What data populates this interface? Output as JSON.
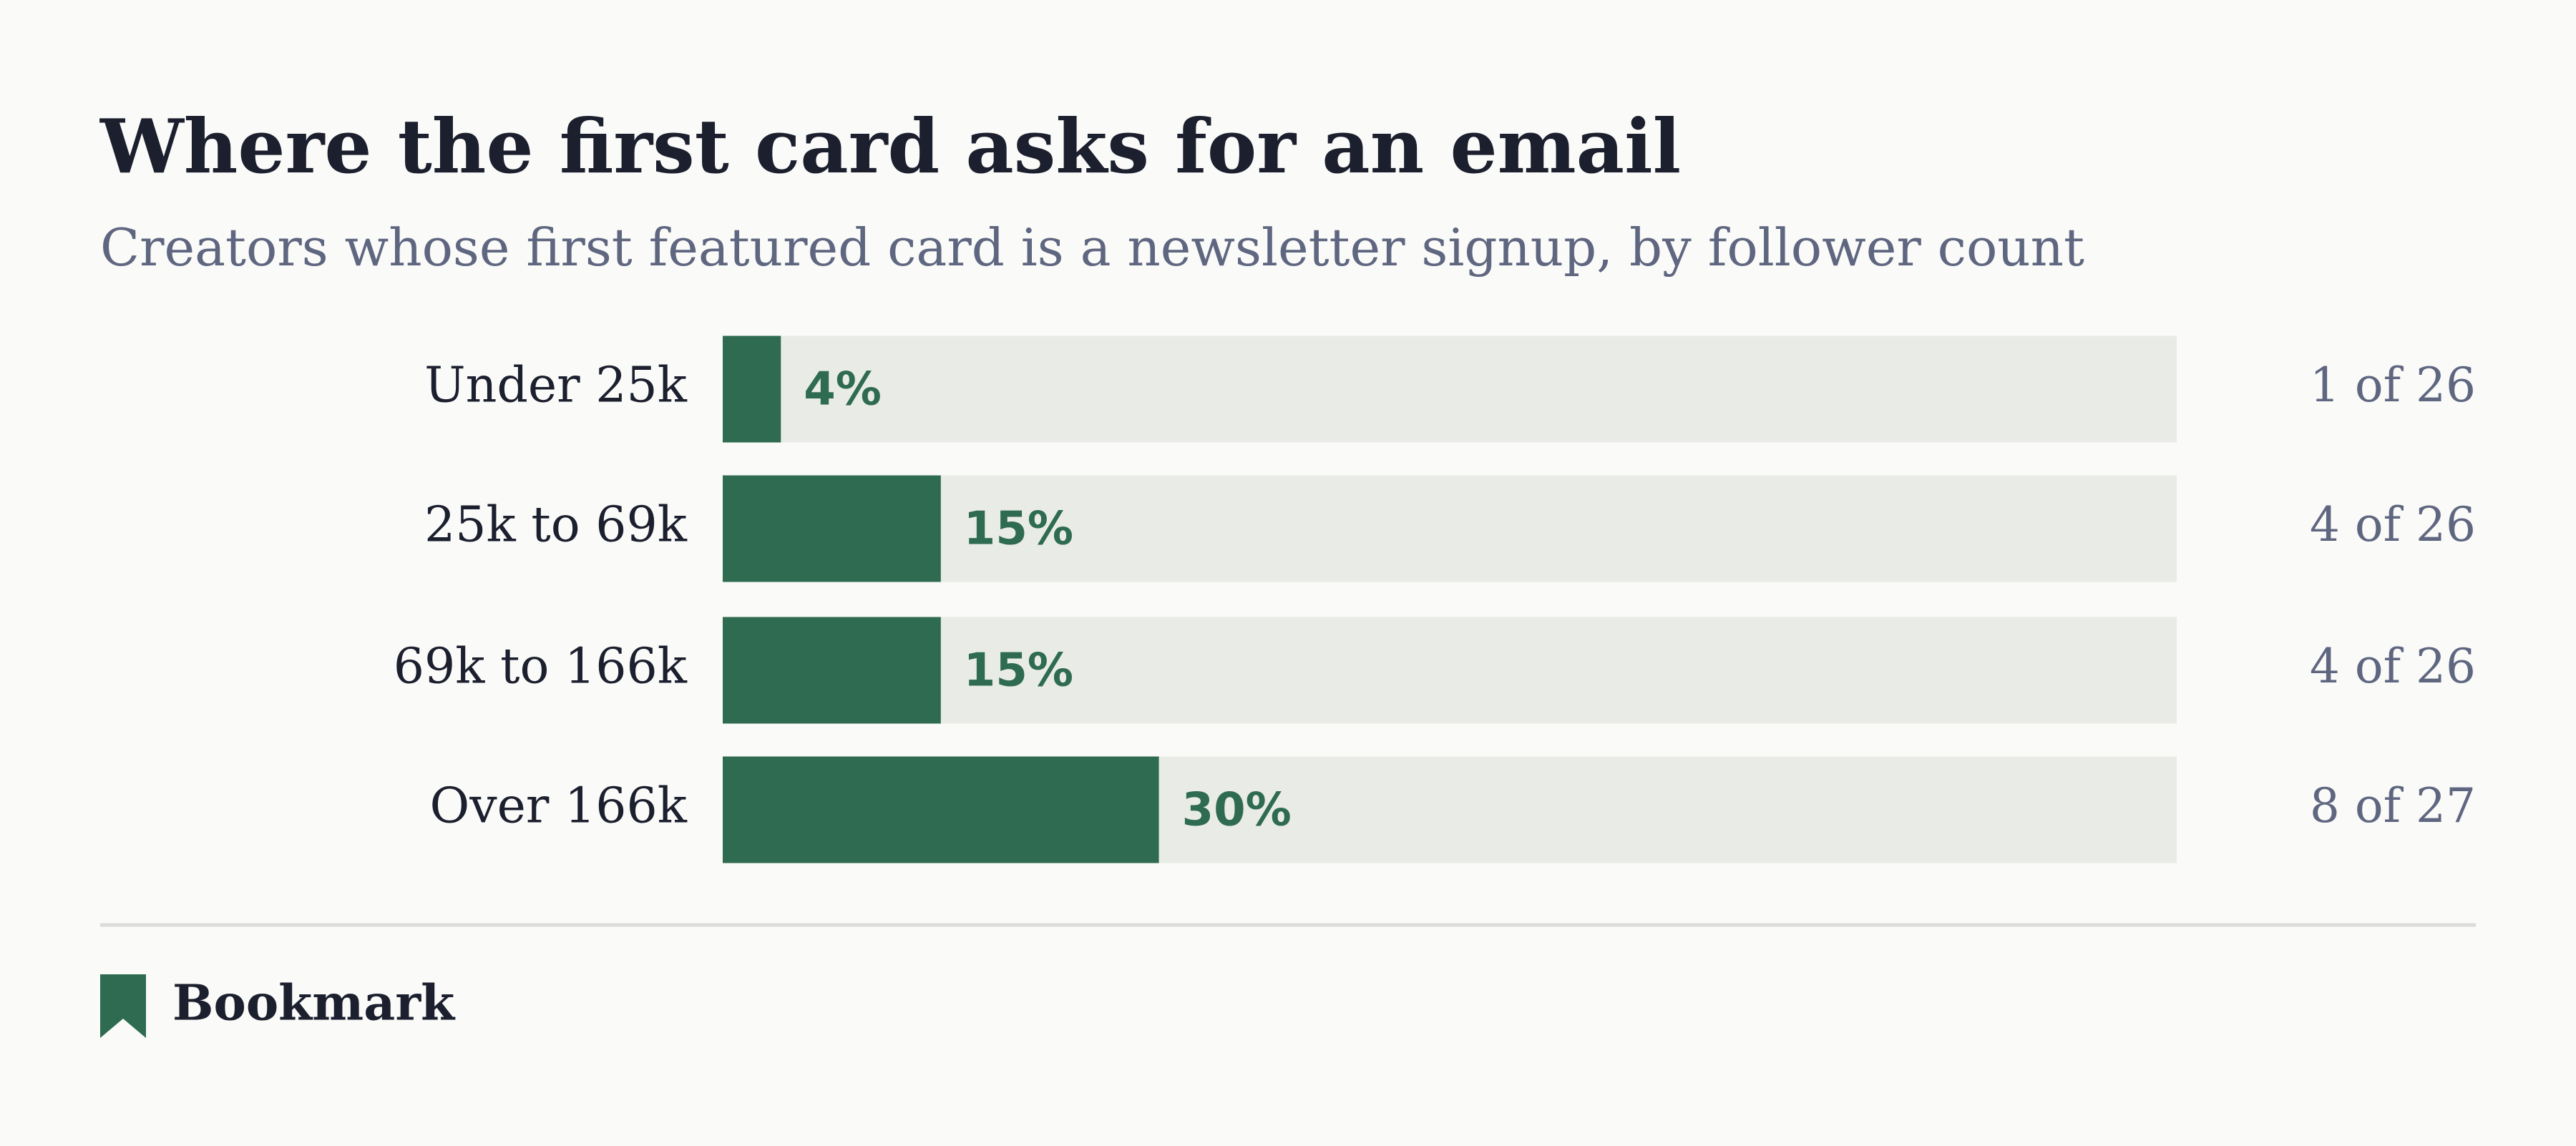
{
  "chart_data": {
    "type": "hbar",
    "title": "Where the first card asks for an email",
    "subtitle": "Creators whose first featured card is a newsletter signup, by follower count",
    "categories": [
      "Under 25k",
      "25k to 69k",
      "69k to 166k",
      "Over 166k"
    ],
    "values": [
      4,
      15,
      15,
      30
    ],
    "value_labels": [
      "4%",
      "15%",
      "15%",
      "30%"
    ],
    "annotations": [
      "1 of 26",
      "4 of 26",
      "4 of 26",
      "8 of 27"
    ],
    "xlim": [
      0,
      100
    ],
    "color": "#2e6b50",
    "track_color": "#e9ebe6",
    "brand": "Bookmark"
  }
}
